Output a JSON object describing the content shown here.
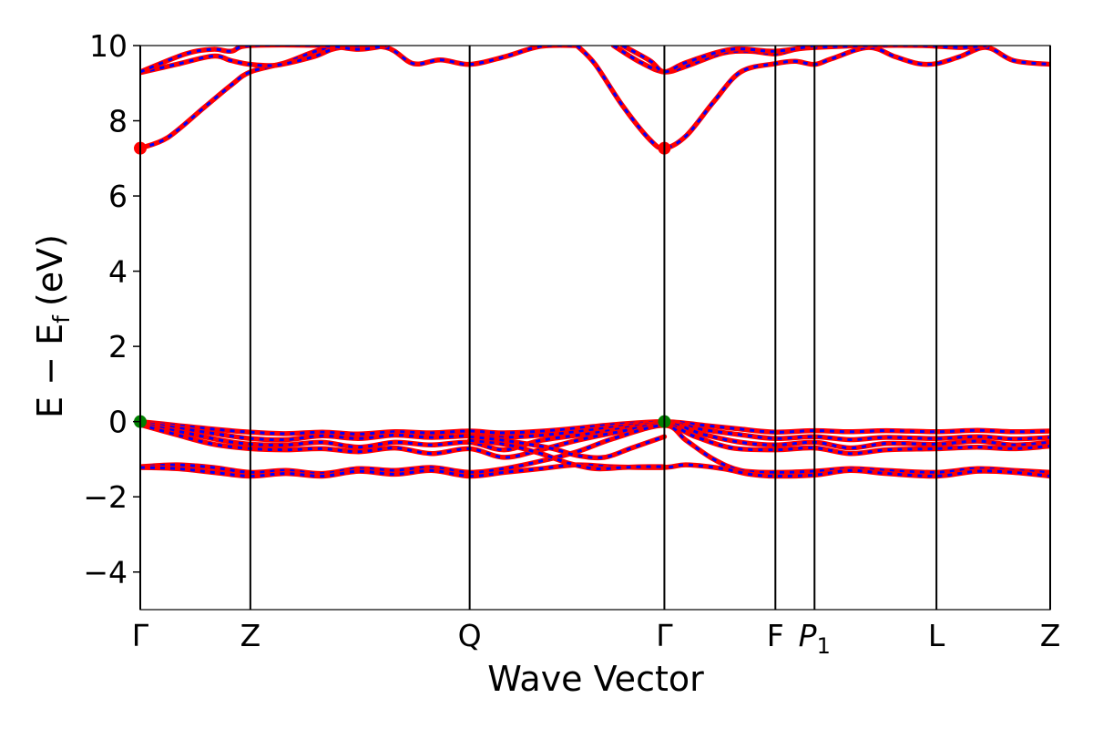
{
  "chart_data": {
    "type": "line",
    "title": "",
    "xlabel": "Wave Vector",
    "ylabel": "E  −  E",
    "ylabel_subscript": "f",
    "ylabel_unit": "(eV)",
    "ylim": [
      -5,
      10
    ],
    "yticks": [
      -4,
      -2,
      0,
      2,
      4,
      6,
      8,
      10
    ],
    "ytick_labels": [
      "−4",
      "−2",
      "0",
      "2",
      "4",
      "6",
      "8",
      "10"
    ],
    "xlim": [
      0,
      1
    ],
    "kpoints": [
      {
        "label": "Γ",
        "x": 0.0
      },
      {
        "label": "Z",
        "x": 0.121
      },
      {
        "label": "Q",
        "x": 0.362
      },
      {
        "label": "Γ",
        "x": 0.576
      },
      {
        "label": "F",
        "x": 0.698
      },
      {
        "label": "P",
        "sub": "1",
        "italic": true,
        "x": 0.741
      },
      {
        "label": "L",
        "x": 0.875
      },
      {
        "label": "Z",
        "x": 1.0
      }
    ],
    "colors": {
      "up": "#ff0000",
      "down": "#0000ff",
      "vbm": "#008000",
      "cbm": "#ff0000",
      "frame": "#000000"
    },
    "grid": false,
    "series": [
      {
        "values": [
          [
            0,
            7.27
          ],
          [
            0.03,
            7.55
          ],
          [
            0.07,
            8.35
          ],
          [
            0.1,
            8.95
          ],
          [
            0.121,
            9.3
          ],
          [
            0.16,
            9.55
          ],
          [
            0.2,
            9.9
          ],
          [
            0.24,
            10.0
          ]
        ]
      },
      {
        "values": [
          [
            0,
            9.28
          ],
          [
            0.04,
            9.5
          ],
          [
            0.08,
            9.72
          ],
          [
            0.1,
            9.6
          ],
          [
            0.121,
            9.5
          ],
          [
            0.15,
            9.48
          ],
          [
            0.19,
            9.7
          ],
          [
            0.22,
            9.95
          ],
          [
            0.27,
            9.95
          ],
          [
            0.3,
            9.52
          ],
          [
            0.33,
            9.62
          ],
          [
            0.362,
            9.5
          ],
          [
            0.4,
            9.7
          ],
          [
            0.44,
            9.98
          ],
          [
            0.48,
            10.0
          ]
        ]
      },
      {
        "values": [
          [
            0,
            9.3
          ],
          [
            0.05,
            9.78
          ],
          [
            0.08,
            9.9
          ],
          [
            0.1,
            9.85
          ],
          [
            0.12,
            10.0
          ],
          [
            0.2,
            10.0
          ],
          [
            0.24,
            9.9
          ],
          [
            0.27,
            10.0
          ]
        ]
      },
      {
        "values": [
          [
            0.48,
            10.0
          ],
          [
            0.5,
            9.5
          ],
          [
            0.53,
            8.4
          ],
          [
            0.56,
            7.5
          ],
          [
            0.576,
            7.27
          ],
          [
            0.6,
            7.6
          ],
          [
            0.63,
            8.5
          ],
          [
            0.66,
            9.3
          ],
          [
            0.698,
            9.52
          ],
          [
            0.72,
            9.58
          ],
          [
            0.741,
            9.5
          ],
          [
            0.76,
            9.65
          ],
          [
            0.8,
            9.95
          ],
          [
            0.83,
            9.7
          ],
          [
            0.855,
            9.52
          ],
          [
            0.875,
            9.52
          ],
          [
            0.9,
            9.7
          ],
          [
            0.93,
            9.95
          ],
          [
            0.96,
            9.6
          ],
          [
            1.0,
            9.5
          ]
        ]
      },
      {
        "values": [
          [
            0.52,
            10.0
          ],
          [
            0.55,
            9.55
          ],
          [
            0.576,
            9.3
          ],
          [
            0.6,
            9.45
          ],
          [
            0.64,
            9.8
          ],
          [
            0.67,
            9.85
          ],
          [
            0.698,
            9.78
          ],
          [
            0.72,
            9.9
          ],
          [
            0.741,
            9.95
          ],
          [
            0.8,
            10.0
          ],
          [
            0.86,
            10.0
          ],
          [
            0.9,
            9.95
          ],
          [
            0.93,
            10.0
          ]
        ]
      },
      {
        "values": [
          [
            0.53,
            10.0
          ],
          [
            0.56,
            9.6
          ],
          [
            0.576,
            9.3
          ],
          [
            0.6,
            9.55
          ],
          [
            0.65,
            9.9
          ],
          [
            0.698,
            9.85
          ],
          [
            0.741,
            10.0
          ]
        ]
      },
      {
        "values": [
          [
            0,
            0.0
          ],
          [
            0.04,
            -0.1
          ],
          [
            0.08,
            -0.2
          ],
          [
            0.121,
            -0.28
          ],
          [
            0.16,
            -0.32
          ],
          [
            0.2,
            -0.28
          ],
          [
            0.24,
            -0.33
          ],
          [
            0.28,
            -0.27
          ],
          [
            0.32,
            -0.3
          ],
          [
            0.362,
            -0.25
          ],
          [
            0.4,
            -0.3
          ],
          [
            0.46,
            -0.22
          ],
          [
            0.52,
            -0.08
          ],
          [
            0.576,
            0.0
          ],
          [
            0.62,
            -0.1
          ],
          [
            0.66,
            -0.2
          ],
          [
            0.698,
            -0.28
          ],
          [
            0.741,
            -0.24
          ],
          [
            0.78,
            -0.27
          ],
          [
            0.82,
            -0.24
          ],
          [
            0.875,
            -0.27
          ],
          [
            0.92,
            -0.23
          ],
          [
            0.96,
            -0.27
          ],
          [
            1.0,
            -0.25
          ]
        ]
      },
      {
        "values": [
          [
            0,
            -0.02
          ],
          [
            0.05,
            -0.2
          ],
          [
            0.09,
            -0.35
          ],
          [
            0.121,
            -0.45
          ],
          [
            0.16,
            -0.48
          ],
          [
            0.2,
            -0.38
          ],
          [
            0.24,
            -0.45
          ],
          [
            0.28,
            -0.36
          ],
          [
            0.32,
            -0.42
          ],
          [
            0.362,
            -0.38
          ],
          [
            0.4,
            -0.42
          ],
          [
            0.46,
            -0.32
          ],
          [
            0.52,
            -0.15
          ],
          [
            0.576,
            -0.02
          ],
          [
            0.62,
            -0.22
          ],
          [
            0.66,
            -0.35
          ],
          [
            0.698,
            -0.45
          ],
          [
            0.741,
            -0.4
          ],
          [
            0.78,
            -0.48
          ],
          [
            0.82,
            -0.42
          ],
          [
            0.875,
            -0.45
          ],
          [
            0.92,
            -0.4
          ],
          [
            0.96,
            -0.46
          ],
          [
            1.0,
            -0.42
          ]
        ]
      },
      {
        "values": [
          [
            0,
            -0.05
          ],
          [
            0.05,
            -0.3
          ],
          [
            0.09,
            -0.5
          ],
          [
            0.121,
            -0.6
          ],
          [
            0.16,
            -0.62
          ],
          [
            0.2,
            -0.55
          ],
          [
            0.24,
            -0.68
          ],
          [
            0.28,
            -0.55
          ],
          [
            0.32,
            -0.62
          ],
          [
            0.362,
            -0.55
          ],
          [
            0.4,
            -0.75
          ],
          [
            0.44,
            -0.5
          ],
          [
            0.5,
            -0.3
          ],
          [
            0.576,
            -0.05
          ],
          [
            0.62,
            -0.35
          ],
          [
            0.66,
            -0.55
          ],
          [
            0.698,
            -0.62
          ],
          [
            0.741,
            -0.55
          ],
          [
            0.78,
            -0.7
          ],
          [
            0.82,
            -0.58
          ],
          [
            0.875,
            -0.6
          ],
          [
            0.92,
            -0.52
          ],
          [
            0.96,
            -0.62
          ],
          [
            1.0,
            -0.55
          ]
        ]
      },
      {
        "values": [
          [
            0,
            -0.08
          ],
          [
            0.04,
            -0.35
          ],
          [
            0.08,
            -0.6
          ],
          [
            0.121,
            -0.72
          ],
          [
            0.16,
            -0.75
          ],
          [
            0.2,
            -0.72
          ],
          [
            0.24,
            -0.8
          ],
          [
            0.28,
            -0.7
          ],
          [
            0.32,
            -0.85
          ],
          [
            0.362,
            -0.72
          ],
          [
            0.4,
            -0.95
          ],
          [
            0.44,
            -0.75
          ],
          [
            0.48,
            -0.5
          ],
          [
            0.52,
            -0.3
          ],
          [
            0.576,
            -0.08
          ],
          [
            0.61,
            -0.4
          ],
          [
            0.65,
            -0.7
          ],
          [
            0.698,
            -0.75
          ],
          [
            0.741,
            -0.7
          ],
          [
            0.78,
            -0.85
          ],
          [
            0.82,
            -0.75
          ],
          [
            0.875,
            -0.72
          ],
          [
            0.92,
            -0.68
          ],
          [
            0.96,
            -0.72
          ],
          [
            1.0,
            -0.65
          ]
        ]
      },
      {
        "values": [
          [
            0,
            -1.2
          ],
          [
            0.04,
            -1.15
          ],
          [
            0.08,
            -1.22
          ],
          [
            0.121,
            -1.35
          ],
          [
            0.16,
            -1.3
          ],
          [
            0.2,
            -1.38
          ],
          [
            0.24,
            -1.25
          ],
          [
            0.28,
            -1.3
          ],
          [
            0.32,
            -1.22
          ],
          [
            0.362,
            -1.35
          ],
          [
            0.4,
            -1.25
          ],
          [
            0.44,
            -1.05
          ],
          [
            0.48,
            -0.8
          ],
          [
            0.52,
            -0.45
          ],
          [
            0.576,
            -0.1
          ],
          [
            0.6,
            -0.5
          ],
          [
            0.63,
            -1.0
          ],
          [
            0.66,
            -1.3
          ],
          [
            0.698,
            -1.35
          ],
          [
            0.741,
            -1.32
          ],
          [
            0.78,
            -1.25
          ],
          [
            0.82,
            -1.3
          ],
          [
            0.875,
            -1.35
          ],
          [
            0.92,
            -1.25
          ],
          [
            0.96,
            -1.3
          ],
          [
            1.0,
            -1.35
          ]
        ]
      },
      {
        "values": [
          [
            0,
            -1.22
          ],
          [
            0.04,
            -1.25
          ],
          [
            0.08,
            -1.35
          ],
          [
            0.121,
            -1.45
          ],
          [
            0.16,
            -1.38
          ],
          [
            0.2,
            -1.45
          ],
          [
            0.24,
            -1.32
          ],
          [
            0.28,
            -1.4
          ],
          [
            0.32,
            -1.3
          ],
          [
            0.362,
            -1.45
          ],
          [
            0.4,
            -1.35
          ],
          [
            0.44,
            -1.25
          ],
          [
            0.48,
            -1.15
          ],
          [
            0.52,
            -1.2
          ],
          [
            0.576,
            -1.22
          ],
          [
            0.6,
            -1.15
          ],
          [
            0.64,
            -1.25
          ],
          [
            0.67,
            -1.4
          ],
          [
            0.698,
            -1.45
          ],
          [
            0.741,
            -1.42
          ],
          [
            0.78,
            -1.3
          ],
          [
            0.82,
            -1.38
          ],
          [
            0.875,
            -1.45
          ],
          [
            0.92,
            -1.32
          ],
          [
            0.96,
            -1.35
          ],
          [
            1.0,
            -1.45
          ]
        ]
      },
      {
        "values": [
          [
            0.362,
            -0.5
          ],
          [
            0.4,
            -0.6
          ],
          [
            0.44,
            -0.85
          ],
          [
            0.47,
            -1.1
          ],
          [
            0.5,
            -1.25
          ],
          [
            0.53,
            -1.22
          ],
          [
            0.55,
            -1.2
          ],
          [
            0.576,
            -1.2
          ]
        ]
      },
      {
        "values": [
          [
            0.362,
            -0.4
          ],
          [
            0.4,
            -0.5
          ],
          [
            0.45,
            -0.7
          ],
          [
            0.48,
            -0.9
          ],
          [
            0.51,
            -0.95
          ],
          [
            0.54,
            -0.7
          ],
          [
            0.576,
            -0.4
          ]
        ]
      }
    ],
    "extrema_markers": [
      {
        "kind": "cbm",
        "x": 0.0,
        "y": 7.27
      },
      {
        "kind": "cbm",
        "x": 0.576,
        "y": 7.27
      },
      {
        "kind": "vbm",
        "x": 0.0,
        "y": 0.0
      },
      {
        "kind": "vbm",
        "x": 0.576,
        "y": 0.0
      }
    ]
  }
}
